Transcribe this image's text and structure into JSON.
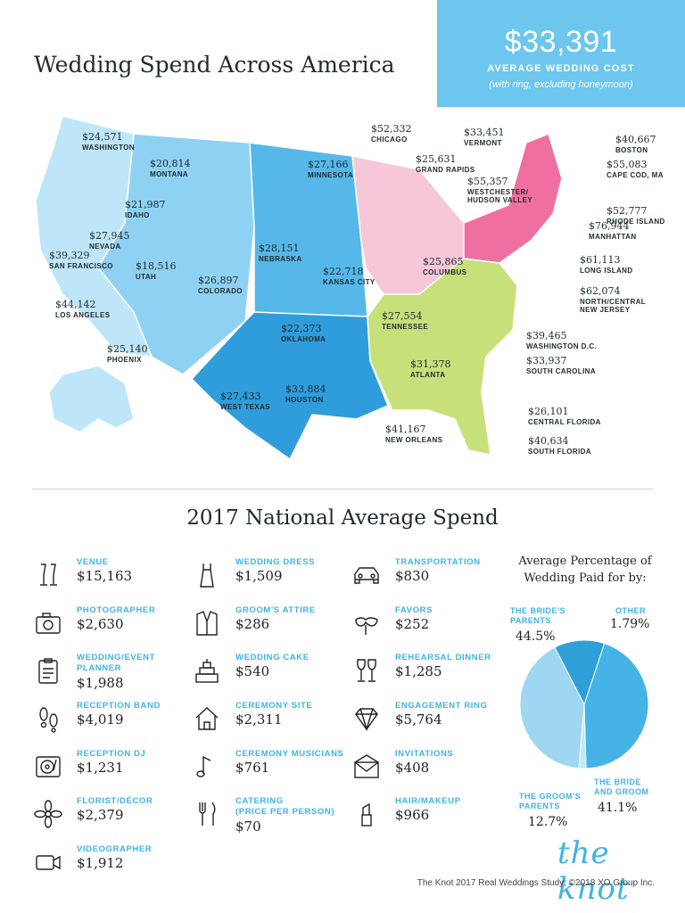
{
  "title": "Wedding Spend Across America",
  "banner": {
    "amount": "$33,391",
    "label": "AVERAGE WEDDING COST",
    "sub": "(with ring, excluding honeymoon)"
  },
  "map_labels": [
    {
      "value": "$24,571",
      "name": "WASHINGTON"
    },
    {
      "value": "$20,814",
      "name": "MONTANA"
    },
    {
      "value": "$21,987",
      "name": "IDAHO"
    },
    {
      "value": "$27,945",
      "name": "NEVADA"
    },
    {
      "value": "$18,516",
      "name": "UTAH"
    },
    {
      "value": "$39,329",
      "name": "SAN FRANCISCO"
    },
    {
      "value": "$44,142",
      "name": "LOS ANGELES"
    },
    {
      "value": "$26,897",
      "name": "COLORADO"
    },
    {
      "value": "$25,140",
      "name": "PHOENIX"
    },
    {
      "value": "$27,166",
      "name": "MINNESOTA"
    },
    {
      "value": "$28,151",
      "name": "NEBRASKA"
    },
    {
      "value": "$22,718",
      "name": "KANSAS CITY"
    },
    {
      "value": "$22,373",
      "name": "OKLAHOMA"
    },
    {
      "value": "$27,433",
      "name": "WEST TEXAS"
    },
    {
      "value": "$33,884",
      "name": "HOUSTON"
    },
    {
      "value": "$41,167",
      "name": "NEW ORLEANS"
    },
    {
      "value": "$52,332",
      "name": "CHICAGO"
    },
    {
      "value": "$25,631",
      "name": "GRAND RAPIDS"
    },
    {
      "value": "$25,865",
      "name": "COLUMBUS"
    },
    {
      "value": "$27,554",
      "name": "TENNESSEE"
    },
    {
      "value": "$31,378",
      "name": "ATLANTA"
    },
    {
      "value": "$33,451",
      "name": "VERMONT"
    },
    {
      "value": "$40,667",
      "name": "BOSTON"
    },
    {
      "value": "$55,357",
      "name": "WESTCHESTER/\nHUDSON VALLEY"
    },
    {
      "value": "$55,083",
      "name": "CAPE COD, MA"
    },
    {
      "value": "$52,777",
      "name": "RHODE ISLAND"
    },
    {
      "value": "$76,944",
      "name": "MANHATTAN"
    },
    {
      "value": "$61,113",
      "name": "LONG ISLAND"
    },
    {
      "value": "$62,074",
      "name": "NORTH/CENTRAL\nNEW JERSEY"
    },
    {
      "value": "$39,465",
      "name": "WASHINGTON D.C."
    },
    {
      "value": "$33,937",
      "name": "SOUTH CAROLINA"
    },
    {
      "value": "$26,101",
      "name": "CENTRAL FLORIDA"
    },
    {
      "value": "$40,634",
      "name": "SOUTH FLORIDA"
    }
  ],
  "section_title": "2017 National Average Spend",
  "items": [
    {
      "name": "VENUE",
      "value": "$15,163",
      "icon": "champagne-glasses-icon"
    },
    {
      "name": "PHOTOGRAPHER",
      "value": "$2,630",
      "icon": "camera-icon"
    },
    {
      "name": "WEDDING/EVENT\nPLANNER",
      "value": "$1,988",
      "icon": "clipboard-icon"
    },
    {
      "name": "RECEPTION BAND",
      "value": "$4,019",
      "icon": "footprints-icon"
    },
    {
      "name": "RECEPTION DJ",
      "value": "$1,231",
      "icon": "turntable-icon"
    },
    {
      "name": "FLORIST/DÉCOR",
      "value": "$2,379",
      "icon": "flower-icon"
    },
    {
      "name": "VIDEOGRAPHER",
      "value": "$1,912",
      "icon": "video-camera-icon"
    },
    {
      "name": "WEDDING DRESS",
      "value": "$1,509",
      "icon": "dress-icon"
    },
    {
      "name": "GROOM'S ATTIRE",
      "value": "$286",
      "icon": "suit-jacket-icon"
    },
    {
      "name": "WEDDING CAKE",
      "value": "$540",
      "icon": "cake-icon"
    },
    {
      "name": "CEREMONY SITE",
      "value": "$2,311",
      "icon": "house-icon"
    },
    {
      "name": "CEREMONY MUSICIANS",
      "value": "$761",
      "icon": "music-note-icon"
    },
    {
      "name": "CATERING\n(PRICE PER PERSON)",
      "value": "$70",
      "icon": "fork-knife-icon"
    },
    {
      "name": "TRANSPORTATION",
      "value": "$830",
      "icon": "car-icon"
    },
    {
      "name": "FAVORS",
      "value": "$252",
      "icon": "party-mask-icon"
    },
    {
      "name": "REHEARSAL DINNER",
      "value": "$1,285",
      "icon": "wine-glasses-icon"
    },
    {
      "name": "ENGAGEMENT RING",
      "value": "$5,764",
      "icon": "diamond-icon"
    },
    {
      "name": "INVITATIONS",
      "value": "$408",
      "icon": "envelope-icon"
    },
    {
      "name": "HAIR/MAKEUP",
      "value": "$966",
      "icon": "lipstick-icon"
    }
  ],
  "chart_data": {
    "type": "pie",
    "title": "Average Percentage of Wedding Paid for by:",
    "slices": [
      {
        "label": "THE BRIDE'S PARENTS",
        "display": "44.5%",
        "value": 44.5,
        "color": "#45b3e6"
      },
      {
        "label": "OTHER",
        "display": "1.79%",
        "value": 1.79,
        "color": "#c4e7f7"
      },
      {
        "label": "THE BRIDE AND GROOM",
        "display": "41.1%",
        "value": 41.1,
        "color": "#9fd6f1"
      },
      {
        "label": "THE GROOM'S PARENTS",
        "display": "12.7%",
        "value": 12.7,
        "color": "#2f9fd8"
      }
    ]
  },
  "brand": "the knot",
  "footer": "The Knot 2017 Real Weddings Study; ©2018 XO Group Inc.",
  "region_colors": {
    "west": "#bfe6f8",
    "mountain": "#8fd1f2",
    "plains": "#55b8e9",
    "south_central": "#2f9ddb",
    "midwest": "#f6c6d9",
    "northeast": "#ee6fa0",
    "southeast": "#c8e07a"
  }
}
